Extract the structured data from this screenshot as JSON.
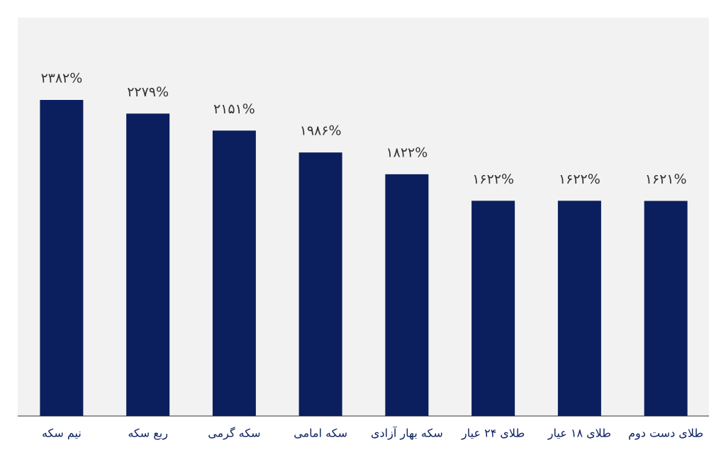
{
  "chart_data": {
    "type": "bar",
    "categories": [
      "نیم سکه",
      "ربع سکه",
      "سکه گرمی",
      "سکه امامی",
      "سکه بهار آزادی",
      "طلای ۲۴ عیار",
      "طلای ۱۸ عیار",
      "طلای دست دوم"
    ],
    "values": [
      2382,
      2279,
      2151,
      1986,
      1822,
      1622,
      1622,
      1621
    ],
    "value_labels": [
      "۲۳۸۲%",
      "۲۲۷۹%",
      "۲۱۵۱%",
      "۱۹۸۶%",
      "۱۸۲۲%",
      "۱۶۲۲%",
      "۱۶۲۲%",
      "۱۶۲۱%"
    ],
    "color": "#0b1f5e"
  }
}
